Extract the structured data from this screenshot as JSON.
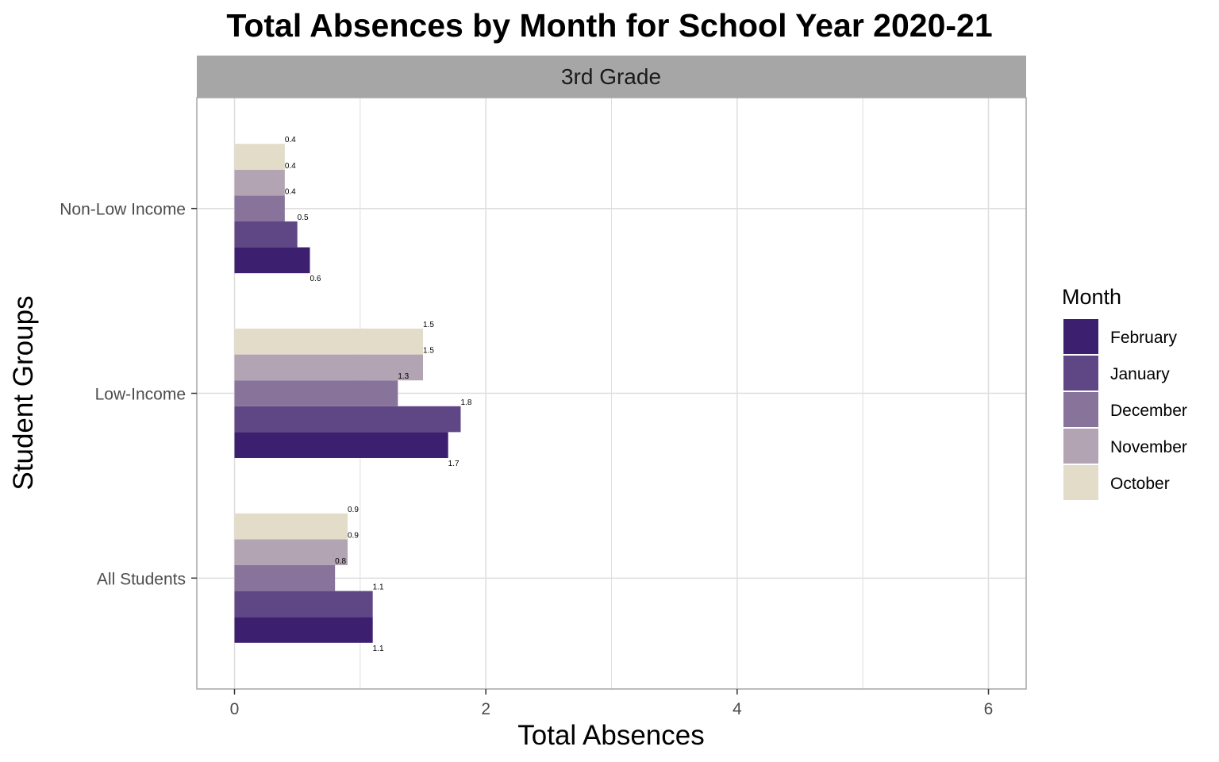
{
  "chart_data": {
    "type": "bar",
    "orientation": "horizontal",
    "title": "Total Absences by Month for School Year 2020-21",
    "facet_label": "3rd Grade",
    "xlabel": "Total Absences",
    "ylabel": "Student Groups",
    "xlim": [
      -0.3,
      6.3
    ],
    "x_ticks": [
      0,
      2,
      4,
      6
    ],
    "categories": [
      "All Students",
      "Low-Income",
      "Non-Low Income"
    ],
    "series": [
      {
        "name": "February",
        "color": "#3c1f6e",
        "values": [
          1.1,
          1.7,
          0.6
        ]
      },
      {
        "name": "January",
        "color": "#5e4784",
        "values": [
          1.1,
          1.8,
          0.5
        ]
      },
      {
        "name": "December",
        "color": "#88739b",
        "values": [
          0.8,
          1.3,
          0.4
        ]
      },
      {
        "name": "November",
        "color": "#b3a4b3",
        "values": [
          0.9,
          1.5,
          0.4
        ]
      },
      {
        "name": "October",
        "color": "#e2dcc8",
        "values": [
          0.9,
          1.5,
          0.4
        ]
      }
    ],
    "legend": {
      "title": "Month",
      "position": "right"
    },
    "grid": true,
    "theme_colors": {
      "strip_fill": "#a6a6a6",
      "grid": "#dedede",
      "panel_border": "#a6a6a6"
    }
  }
}
